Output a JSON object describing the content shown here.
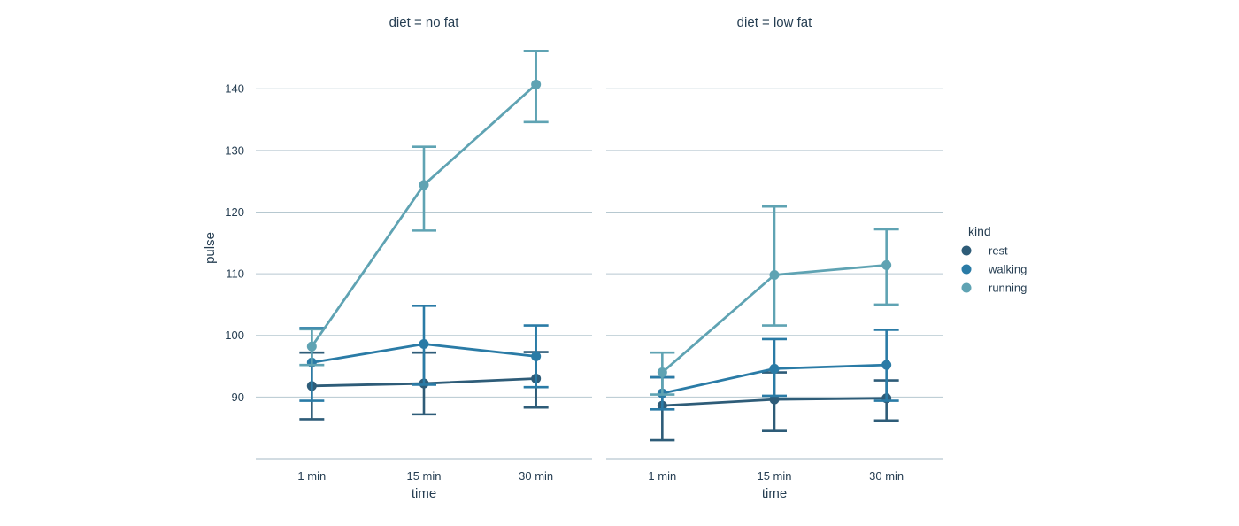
{
  "chart_data": {
    "type": "line",
    "ylabel": "pulse",
    "xlabel": "time",
    "x": [
      "1 min",
      "15 min",
      "30 min"
    ],
    "yticks": [
      90,
      100,
      110,
      120,
      130,
      140
    ],
    "ylim": [
      80,
      147.5
    ],
    "grid": "horizontal",
    "legend": {
      "title": "kind",
      "placement": "right",
      "entries": [
        "rest",
        "walking",
        "running"
      ]
    },
    "colors": {
      "rest": "#2e5c78",
      "walking": "#2a7ba6",
      "running": "#5fa3b3"
    },
    "panels": [
      {
        "title": "diet = no fat",
        "series": [
          {
            "name": "rest",
            "values": [
              91.8,
              92.2,
              93.0
            ],
            "ci_low": [
              86.4,
              87.2,
              88.3
            ],
            "ci_high": [
              97.2,
              97.2,
              97.3
            ]
          },
          {
            "name": "walking",
            "values": [
              95.6,
              98.6,
              96.6
            ],
            "ci_low": [
              89.4,
              92.0,
              91.6
            ],
            "ci_high": [
              101.2,
              104.8,
              101.6
            ]
          },
          {
            "name": "running",
            "values": [
              98.2,
              124.4,
              140.7
            ],
            "ci_low": [
              95.2,
              117.0,
              134.6
            ],
            "ci_high": [
              101.0,
              130.6,
              146.1
            ]
          }
        ]
      },
      {
        "title": "diet = low fat",
        "series": [
          {
            "name": "rest",
            "values": [
              88.6,
              89.6,
              89.8
            ],
            "ci_low": [
              83.0,
              84.5,
              86.2
            ],
            "ci_high": [
              93.2,
              94.0,
              92.7
            ]
          },
          {
            "name": "walking",
            "values": [
              90.6,
              94.6,
              95.2
            ],
            "ci_low": [
              88.0,
              90.2,
              89.4
            ],
            "ci_high": [
              93.2,
              99.4,
              100.9
            ]
          },
          {
            "name": "running",
            "values": [
              94.0,
              109.8,
              111.4
            ],
            "ci_low": [
              90.4,
              101.6,
              105.0
            ],
            "ci_high": [
              97.2,
              120.9,
              117.2
            ]
          }
        ]
      }
    ]
  }
}
